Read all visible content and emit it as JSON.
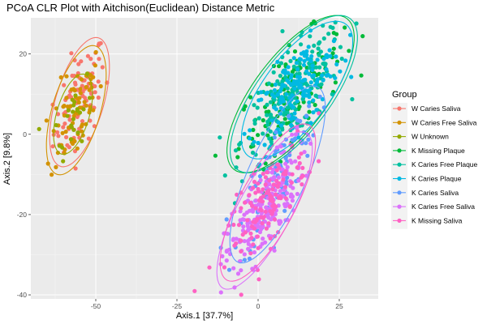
{
  "chart_data": {
    "type": "scatter",
    "title": "PCoA CLR Plot with Aitchison(Euclidean) Distance Metric",
    "xlabel": "Axis.1   [37.7%]",
    "ylabel": "Axis.2   [9.8%]",
    "xlim": [
      -70,
      37
    ],
    "ylim": [
      -41,
      29
    ],
    "x_ticks": [
      -50,
      -25,
      0,
      25
    ],
    "y_ticks": [
      -40,
      -20,
      0,
      20
    ],
    "x_tick_labels": [
      "-50",
      "-25",
      "0",
      "25"
    ],
    "y_tick_labels": [
      "-40",
      "-20",
      "0",
      "20"
    ],
    "grid": true,
    "legend": {
      "title": "Group",
      "position": "right"
    },
    "series": [
      {
        "name": "W Caries Saliva",
        "color": "#F8766D",
        "cx": -55,
        "cy": 8,
        "sx": 4,
        "sy": 7,
        "rho": 0.55,
        "n": 90,
        "ellipse_scale": 2.3
      },
      {
        "name": "W Caries Free Saliva",
        "color": "#D39200",
        "cx": -56,
        "cy": 6,
        "sx": 4,
        "sy": 7,
        "rho": 0.55,
        "n": 70,
        "ellipse_scale": 2.3
      },
      {
        "name": "W Unknown",
        "color": "#93AA00",
        "cx": -57,
        "cy": 5,
        "sx": 3,
        "sy": 5,
        "rho": 0.5,
        "n": 25,
        "ellipse_scale": 2.0
      },
      {
        "name": "K Missing Plaque",
        "color": "#00BA38",
        "cx": 10,
        "cy": 10,
        "sx": 8,
        "sy": 8,
        "rho": 0.72,
        "n": 120,
        "ellipse_scale": 2.45
      },
      {
        "name": "K Caries Free Plaque",
        "color": "#00C19F",
        "cx": 11,
        "cy": 10,
        "sx": 8,
        "sy": 8,
        "rho": 0.72,
        "n": 180,
        "ellipse_scale": 2.45
      },
      {
        "name": "K Caries Plaque",
        "color": "#00B9E3",
        "cx": 12,
        "cy": 11,
        "sx": 7,
        "sy": 7,
        "rho": 0.7,
        "n": 160,
        "ellipse_scale": 2.45
      },
      {
        "name": "K Caries Saliva",
        "color": "#619CFF",
        "cx": 6,
        "cy": -10,
        "sx": 6,
        "sy": 9,
        "rho": 0.75,
        "n": 100,
        "ellipse_scale": 2.45
      },
      {
        "name": "K Caries Free Saliva",
        "color": "#DB72FB",
        "cx": 2,
        "cy": -19,
        "sx": 6,
        "sy": 8,
        "rho": 0.78,
        "n": 220,
        "ellipse_scale": 2.45
      },
      {
        "name": "K Missing Saliva",
        "color": "#FF61C3",
        "cx": 3,
        "cy": -17,
        "sx": 6,
        "sy": 8,
        "rho": 0.76,
        "n": 130,
        "ellipse_scale": 2.45
      }
    ]
  }
}
